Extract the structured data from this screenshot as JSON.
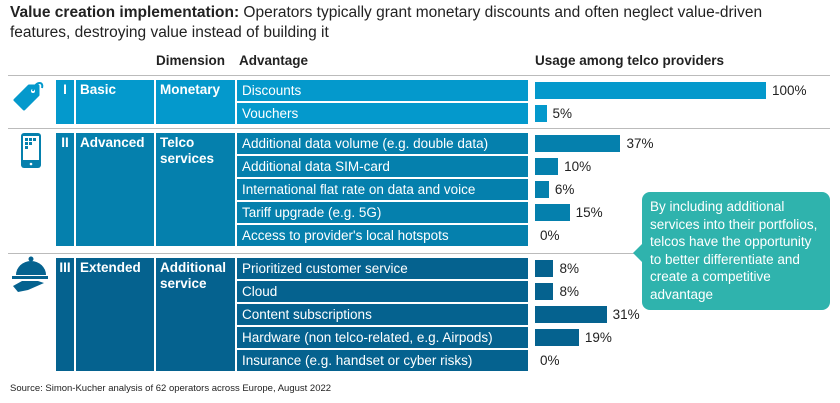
{
  "title": {
    "bold": "Value creation implementation:",
    "rest": " Operators typically grant monetary discounts and often neglect value-driven features, destroying value instead of building it"
  },
  "headers": {
    "dimension": "Dimension",
    "advantage": "Advantage",
    "usage": "Usage among telco providers"
  },
  "callout": "By including additional services into their portfolios, telcos have the opportunity to better differentiate and create a competitive advantage",
  "source": "Source: Simon-Kucher analysis of 62 operators across Europe, August 2022",
  "chart_data": {
    "type": "bar",
    "orientation": "horizontal",
    "xlim": [
      0,
      100
    ],
    "unit": "%",
    "groups": [
      {
        "roman": "I",
        "level": "Basic",
        "dimension": "Monetary",
        "icon": "price-tag-icon",
        "color": "#0499cc",
        "categories": [
          "Discounts",
          "Vouchers"
        ],
        "values": [
          100,
          5
        ]
      },
      {
        "roman": "II",
        "level": "Advanced",
        "dimension": "Telco services",
        "icon": "smartphone-icon",
        "color": "#0580ad",
        "categories": [
          "Additional data volume (e.g. double data)",
          "Additional data SIM-card",
          "International flat rate on data and voice",
          "Tariff upgrade (e.g. 5G)",
          "Access to provider's local hotspots"
        ],
        "values": [
          37,
          10,
          6,
          15,
          0
        ]
      },
      {
        "roman": "III",
        "level": "Extended",
        "dimension": "Additional service",
        "icon": "serving-cloche-icon",
        "color": "#05628f",
        "categories": [
          "Prioritized customer service",
          "Cloud",
          "Content subscriptions",
          "Hardware (non telco-related, e.g. Airpods)",
          "Insurance (e.g. handset or cyber risks)"
        ],
        "values": [
          8,
          8,
          31,
          19,
          0
        ]
      }
    ]
  }
}
